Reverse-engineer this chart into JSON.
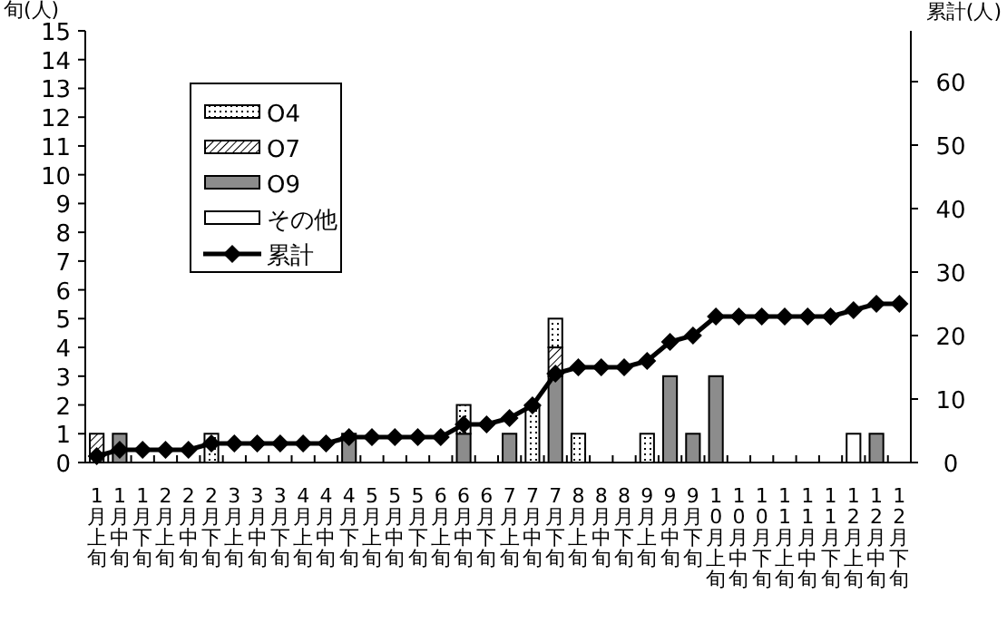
{
  "chart_data": {
    "type": "bar",
    "stacked": true,
    "ylabel": "旬(人)",
    "y2label": "累計(人)",
    "legend": "top left",
    "categories": [
      "1月上旬",
      "1月中旬",
      "1月下旬",
      "2月上旬",
      "2月中旬",
      "2月下旬",
      "3月上旬",
      "3月中旬",
      "3月下旬",
      "4月上旬",
      "4月中旬",
      "4月下旬",
      "5月上旬",
      "5月中旬",
      "5月下旬",
      "6月上旬",
      "6月中旬",
      "6月下旬",
      "7月上旬",
      "7月中旬",
      "7月下旬",
      "8月上旬",
      "8月中旬",
      "8月下旬",
      "9月上旬",
      "9月中旬",
      "9月下旬",
      "10月上旬",
      "10月中旬",
      "10月下旬",
      "11月上旬",
      "11月中旬",
      "11月下旬",
      "12月上旬",
      "12月中旬",
      "12月下旬"
    ],
    "ylim": [
      0,
      15
    ],
    "yticks": [
      0,
      1,
      2,
      3,
      4,
      5,
      6,
      7,
      8,
      9,
      10,
      11,
      12,
      13,
      14,
      15
    ],
    "y2lim": [
      0,
      68
    ],
    "y2ticks": [
      0,
      10,
      20,
      30,
      40,
      50,
      60
    ],
    "series": [
      {
        "name": "その他",
        "color": "#ffffff",
        "values": [
          0,
          0,
          0,
          0,
          0,
          0,
          0,
          0,
          0,
          0,
          0,
          0,
          0,
          0,
          0,
          0,
          0,
          0,
          0,
          0,
          0,
          0,
          0,
          0,
          0,
          0,
          0,
          0,
          0,
          0,
          0,
          0,
          0,
          1,
          0,
          0
        ]
      },
      {
        "name": "O9",
        "color": "#8c8c8c",
        "values": [
          0,
          1,
          0,
          0,
          0,
          0,
          0,
          0,
          0,
          0,
          0,
          1,
          0,
          0,
          0,
          0,
          1,
          0,
          1,
          0,
          3,
          0,
          0,
          0,
          0,
          3,
          1,
          3,
          0,
          0,
          0,
          0,
          0,
          0,
          1,
          0
        ]
      },
      {
        "name": "O7",
        "color": "#000000",
        "values": [
          1,
          0,
          0,
          0,
          0,
          0,
          0,
          0,
          0,
          0,
          0,
          0,
          0,
          0,
          0,
          0,
          0,
          0,
          0,
          0,
          1,
          0,
          0,
          0,
          0,
          0,
          0,
          0,
          0,
          0,
          0,
          0,
          0,
          0,
          0,
          0
        ]
      },
      {
        "name": "O4",
        "color": "#000000",
        "values": [
          0,
          0,
          0,
          0,
          0,
          1,
          0,
          0,
          0,
          0,
          0,
          0,
          0,
          0,
          0,
          0,
          1,
          0,
          0,
          2,
          1,
          1,
          0,
          0,
          1,
          0,
          0,
          0,
          0,
          0,
          0,
          0,
          0,
          0,
          0,
          0
        ]
      },
      {
        "name": "累計",
        "type": "line",
        "axis": "y2",
        "color": "#000000",
        "marker": "diamond",
        "values": [
          1,
          2,
          2,
          2,
          2,
          3,
          3,
          3,
          3,
          3,
          3,
          4,
          4,
          4,
          4,
          4,
          6,
          6,
          7,
          9,
          14,
          15,
          15,
          15,
          16,
          19,
          20,
          23,
          23,
          23,
          23,
          23,
          23,
          24,
          25,
          25
        ]
      }
    ]
  }
}
